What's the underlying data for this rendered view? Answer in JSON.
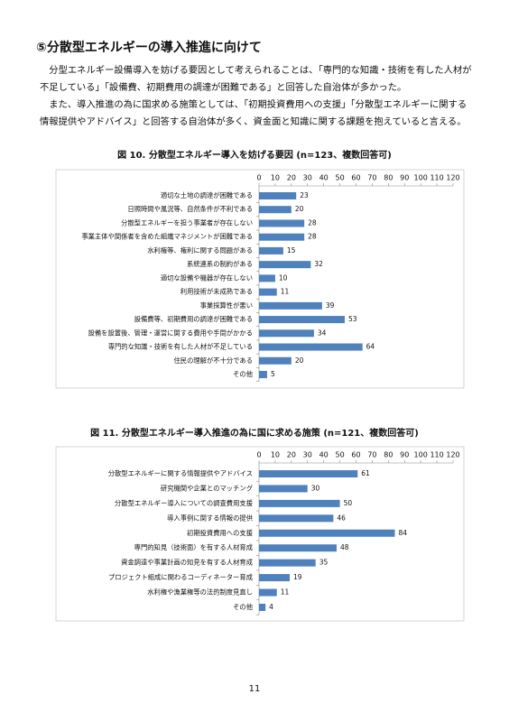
{
  "heading": "⑤分散型エネルギーの導入推進に向けて",
  "paragraphs": [
    "分型エネルギー設備導入を妨げる要因として考えられることは、「専門的な知識・技術を有した人材が不足している」「設備費、初期費用の調達が困難である」と回答した自治体が多かった。",
    "また、導入推進の為に国求める施策としては、「初期投資費用への支援」「分散型エネルギーに関する情報提供やアドバイス」と回答する自治体が多く、資金面と知識に関する課題を抱えていると言える。"
  ],
  "chart_data": [
    {
      "type": "bar",
      "orientation": "horizontal",
      "title": "図 10. 分散型エネルギー導入を妨げる要因 (n=123、複数回答可)",
      "categories": [
        "適切な土地の調達が困難である",
        "日照時間や風況等、自然条件が不利である",
        "分散型エネルギーを担う事業者が存在しない",
        "事業主体や関係者を含めた組織マネジメントが困難である",
        "水利権等、権利に関する問題がある",
        "系統連系の制約がある",
        "適切な設備や機器が存在しない",
        "利用技術が未成熟である",
        "事業採算性が悪い",
        "設備費等、初期費用の調達が困難である",
        "設備を設置後、管理・運営に関する費用や手間がかかる",
        "専門的な知識・技術を有した人材が不足している",
        "住民の理解が不十分である",
        "その他"
      ],
      "values": [
        23,
        20,
        28,
        28,
        15,
        32,
        10,
        11,
        39,
        53,
        34,
        64,
        20,
        5
      ],
      "color": "#4f81bd",
      "xlim": [
        0,
        120
      ],
      "xticks": [
        0,
        10,
        20,
        30,
        40,
        50,
        60,
        70,
        80,
        90,
        100,
        110,
        120
      ]
    },
    {
      "type": "bar",
      "orientation": "horizontal",
      "title": "図 11. 分散型エネルギー導入推進の為に国に求める施策 (n=121、複数回答可)",
      "categories": [
        "分散型エネルギーに関する情報提供やアドバイス",
        "研究機関や企業とのマッチング",
        "分散型エネルギー導入についての調査費用支援",
        "導入事例に関する情報の提供",
        "初期投資費用への支援",
        "専門的知見（技術面）を有する人材育成",
        "資金調達や事業計画の知見を有する人材育成",
        "プロジェクト組成に関わるコーディネーター育成",
        "水利権や漁業権等の法的制度見直し",
        "その他"
      ],
      "values": [
        61,
        30,
        50,
        46,
        84,
        48,
        35,
        19,
        11,
        4
      ],
      "color": "#4f81bd",
      "xlim": [
        0,
        120
      ],
      "xticks": [
        0,
        10,
        20,
        30,
        40,
        50,
        60,
        70,
        80,
        90,
        100,
        110,
        120
      ]
    }
  ],
  "page_number": "11"
}
